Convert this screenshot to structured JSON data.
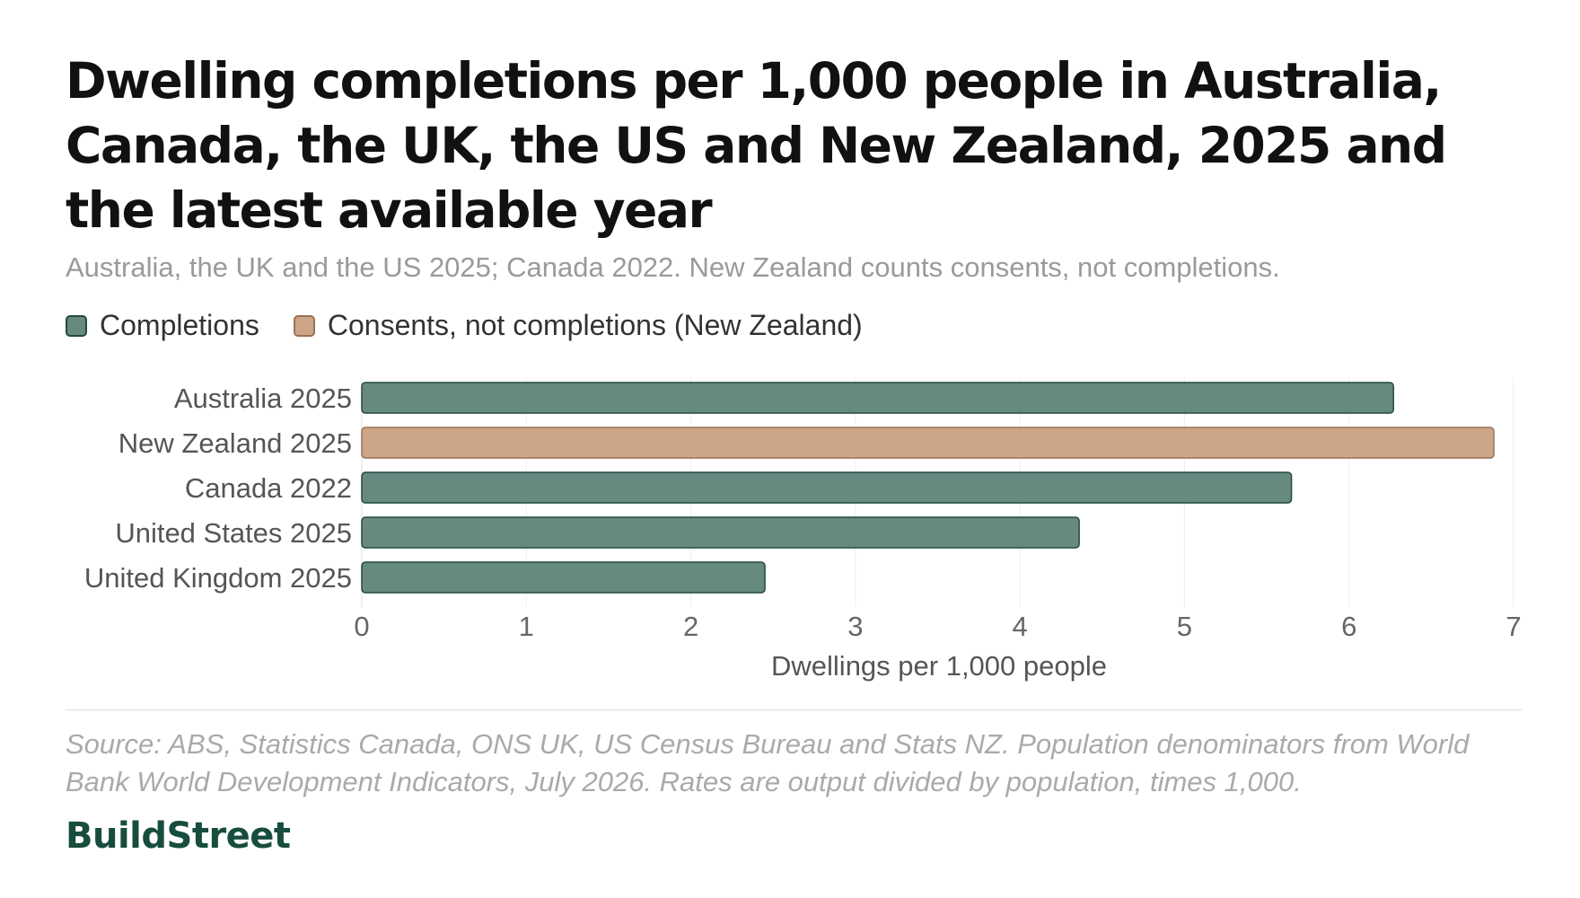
{
  "title": "Dwelling completions per 1,000 people in Australia, Canada, the UK, the US and New Zealand, 2025 and the latest available year",
  "subtitle": "Australia, the UK and the US 2025; Canada 2022. New Zealand counts consents, not completions.",
  "legend": {
    "completions": "Completions",
    "consents": "Consents, not completions (New Zealand)"
  },
  "chart_data": {
    "type": "bar",
    "orientation": "horizontal",
    "categories": [
      "Australia 2025",
      "New Zealand 2025",
      "Canada 2022",
      "United States 2025",
      "United Kingdom 2025"
    ],
    "series": [
      {
        "name": "Completions",
        "values": [
          6.27,
          null,
          5.65,
          4.36,
          2.45
        ],
        "color": "#668a80"
      },
      {
        "name": "Consents, not completions (New Zealand)",
        "values": [
          null,
          6.88,
          null,
          null,
          null
        ],
        "color": "#cda68a"
      }
    ],
    "xlabel": "Dwellings per 1,000 people",
    "xlim": [
      0,
      7
    ],
    "xticks": [
      "0",
      "1",
      "2",
      "3",
      "4",
      "5",
      "6",
      "7"
    ],
    "grid": true,
    "legend_position": "top-left"
  },
  "source": "Source: ABS, Statistics Canada, ONS UK, US Census Bureau and Stats NZ. Population denominators from World Bank World Development Indicators, July 2026. Rates are output divided by population, times 1,000.",
  "brand": "BuildStreet"
}
